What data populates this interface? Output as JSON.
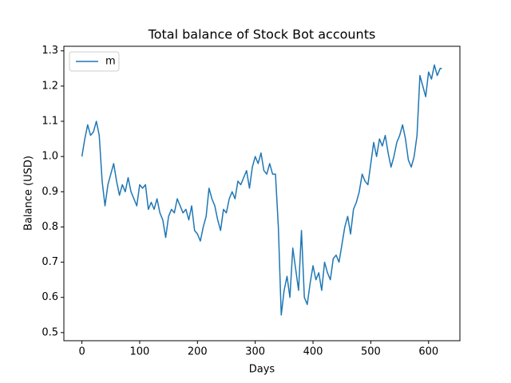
{
  "chart_data": {
    "type": "line",
    "title": "Total balance of Stock Bot accounts",
    "xlabel": "Days",
    "ylabel": "Balance (USD)",
    "x": [
      0,
      5,
      10,
      15,
      20,
      25,
      30,
      35,
      40,
      45,
      50,
      55,
      60,
      65,
      70,
      75,
      80,
      85,
      90,
      95,
      100,
      105,
      110,
      115,
      120,
      125,
      130,
      135,
      140,
      145,
      150,
      155,
      160,
      165,
      170,
      175,
      180,
      185,
      190,
      195,
      200,
      205,
      210,
      215,
      220,
      225,
      230,
      235,
      240,
      245,
      250,
      255,
      260,
      265,
      270,
      275,
      280,
      285,
      290,
      295,
      300,
      305,
      310,
      315,
      320,
      325,
      330,
      335,
      340,
      345,
      350,
      355,
      360,
      365,
      370,
      375,
      380,
      385,
      390,
      395,
      400,
      405,
      410,
      415,
      420,
      425,
      430,
      435,
      440,
      445,
      450,
      455,
      460,
      465,
      470,
      475,
      480,
      485,
      490,
      495,
      500,
      505,
      510,
      515,
      520,
      525,
      530,
      535,
      540,
      545,
      550,
      555,
      560,
      565,
      570,
      575,
      580,
      585,
      590,
      595,
      600,
      605,
      610,
      615,
      620,
      623
    ],
    "series": [
      {
        "name": "m",
        "color": "#1f77b4",
        "values": [
          1.0,
          1.05,
          1.09,
          1.06,
          1.07,
          1.1,
          1.06,
          0.93,
          0.86,
          0.92,
          0.95,
          0.98,
          0.93,
          0.89,
          0.92,
          0.9,
          0.94,
          0.9,
          0.88,
          0.86,
          0.92,
          0.91,
          0.92,
          0.85,
          0.87,
          0.85,
          0.88,
          0.84,
          0.82,
          0.77,
          0.83,
          0.85,
          0.84,
          0.88,
          0.86,
          0.84,
          0.85,
          0.82,
          0.86,
          0.79,
          0.78,
          0.76,
          0.8,
          0.83,
          0.91,
          0.88,
          0.86,
          0.82,
          0.79,
          0.85,
          0.84,
          0.88,
          0.9,
          0.88,
          0.93,
          0.92,
          0.94,
          0.96,
          0.91,
          0.97,
          1.0,
          0.98,
          1.01,
          0.96,
          0.95,
          0.98,
          0.95,
          0.95,
          0.8,
          0.55,
          0.62,
          0.66,
          0.6,
          0.74,
          0.68,
          0.62,
          0.79,
          0.6,
          0.58,
          0.64,
          0.69,
          0.65,
          0.67,
          0.62,
          0.7,
          0.67,
          0.65,
          0.71,
          0.72,
          0.7,
          0.75,
          0.8,
          0.83,
          0.78,
          0.85,
          0.87,
          0.9,
          0.95,
          0.93,
          0.92,
          0.98,
          1.04,
          1.0,
          1.05,
          1.03,
          1.06,
          1.01,
          0.97,
          1.0,
          1.04,
          1.06,
          1.09,
          1.05,
          0.99,
          0.97,
          1.0,
          1.06,
          1.23,
          1.2,
          1.17,
          1.24,
          1.22,
          1.26,
          1.23,
          1.25,
          1.25
        ]
      }
    ],
    "xlim": [
      -31.2,
      654.2
    ],
    "xticks": [
      0,
      100,
      200,
      300,
      400,
      500,
      600
    ],
    "ylim": [
      0.477,
      1.313
    ],
    "yticks": [
      0.5,
      0.6,
      0.7,
      0.8,
      0.9,
      {
        "value": 1.0,
        "label": "1.0"
      },
      1.1,
      1.2,
      1.3
    ],
    "legend": "upper left"
  }
}
